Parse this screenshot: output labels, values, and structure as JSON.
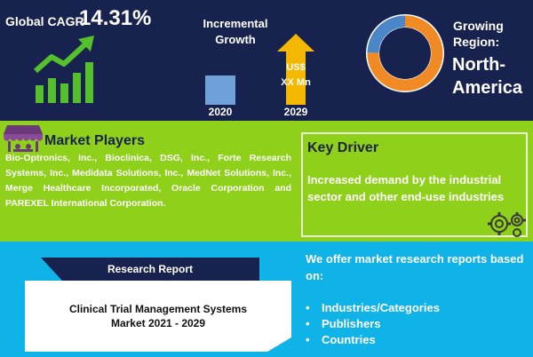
{
  "top": {
    "cagr_label": "Global CAGR",
    "cagr_value": "14.31%",
    "incremental_title": "Incremental Growth",
    "year_start": "2020",
    "year_end": "2029",
    "value_unit": "US$",
    "value_amount": "XX Mn",
    "growing_region_label": "Growing Region:",
    "region_line1": "North-",
    "region_line2": "America"
  },
  "middle": {
    "players_title": "Market Players",
    "players_text": "Bio-Optronics, Inc., Bioclinica, DSG, Inc., Forte Research Systems, Inc., Medidata Solutions, Inc., MedNet Solutions, Inc., Merge Healthcare Incorporated, Oracle Corporation and PAREXEL International Corporation.",
    "driver_title": "Key Driver",
    "driver_text": "Increased demand by the industrial sector and other end-use industries"
  },
  "bottom": {
    "report_tab": "Research Report",
    "report_title_line1": "Clinical Trial Management Systems",
    "report_title_line2": "Market 2021 - 2029",
    "offer_text": "We offer market research reports based on:",
    "offer_items": [
      "Industries/Categories",
      "Publishers",
      "Countries"
    ]
  },
  "colors": {
    "navy": "#18224f",
    "green": "#8fd11a",
    "cyan": "#10b3e8",
    "donut_orange": "#f08a24",
    "donut_blue": "#4a86c8"
  },
  "icons": {
    "cagr": "growth-chart-icon",
    "players": "market-stall-icon",
    "driver": "gears-icon"
  }
}
